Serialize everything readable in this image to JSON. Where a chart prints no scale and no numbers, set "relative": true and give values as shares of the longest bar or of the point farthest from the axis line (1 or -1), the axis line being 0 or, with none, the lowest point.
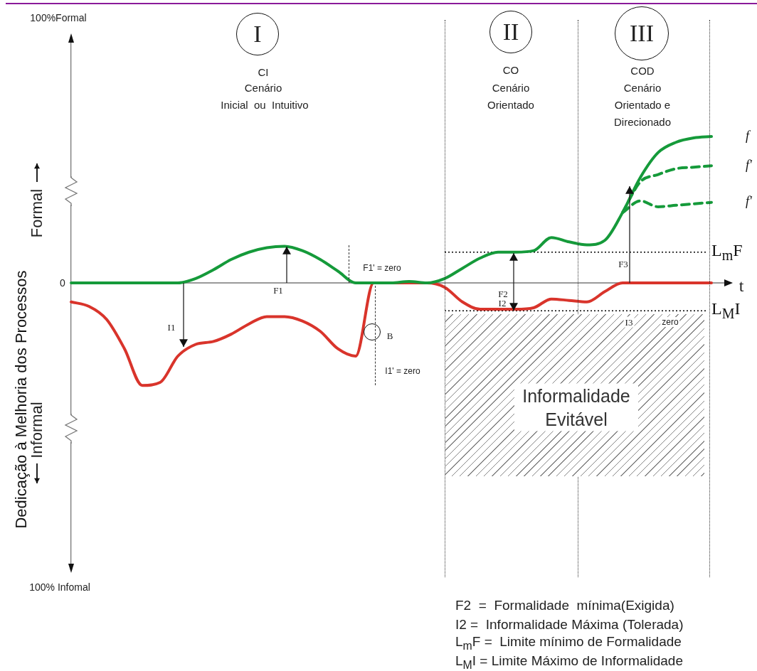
{
  "chart_data": {
    "type": "line",
    "relative": true,
    "ylabel": "Dedicação à Melhoria dos Processos",
    "categories": [
      null,
      null,
      null,
      null,
      null,
      null,
      null,
      null,
      null,
      null,
      null,
      null,
      null,
      null,
      null,
      null,
      null,
      null,
      null,
      null,
      null,
      null,
      null,
      null,
      null,
      null,
      null,
      null,
      null,
      null,
      null,
      null,
      null,
      null,
      null,
      null,
      null
    ],
    "series": [
      {
        "name": "f",
        "color": "#159a3a",
        "values": [
          0,
          0,
          0,
          0,
          0,
          0,
          0,
          0.03,
          0.09,
          0.16,
          0.21,
          0.24,
          0.25,
          0.22,
          0.16,
          0.08,
          0,
          0,
          0,
          0.01,
          0,
          0.03,
          0.1,
          0.17,
          0.21,
          0.21,
          0.22,
          0.31,
          0.28,
          0.26,
          0.29,
          0.48,
          0.72,
          0.89,
          0.96,
          0.99,
          1
        ]
      },
      {
        "name": "f'",
        "color": "#159a3a",
        "line_style": "dashed",
        "values": [
          null,
          null,
          null,
          null,
          null,
          null,
          null,
          null,
          null,
          null,
          null,
          null,
          null,
          null,
          null,
          null,
          null,
          null,
          null,
          null,
          null,
          null,
          null,
          null,
          null,
          null,
          null,
          null,
          null,
          null,
          null,
          0.48,
          0.69,
          0.74,
          0.78,
          0.79,
          0.8
        ]
      },
      {
        "name": "f'",
        "color": "#159a3a",
        "line_style": "dashed",
        "values": [
          null,
          null,
          null,
          null,
          null,
          null,
          null,
          null,
          null,
          null,
          null,
          null,
          null,
          null,
          null,
          null,
          null,
          null,
          null,
          null,
          null,
          null,
          null,
          null,
          null,
          null,
          null,
          null,
          null,
          null,
          null,
          0.48,
          0.56,
          0.52,
          0.53,
          0.54,
          0.55
        ]
      },
      {
        "color": "#d9342b",
        "values": [
          -0.13,
          -0.16,
          -0.25,
          -0.45,
          -0.7,
          -0.68,
          -0.5,
          -0.42,
          -0.4,
          -0.35,
          -0.28,
          -0.23,
          -0.23,
          -0.26,
          -0.33,
          -0.45,
          -0.5,
          0,
          0,
          0,
          0,
          -0.03,
          -0.13,
          -0.18,
          -0.18,
          -0.18,
          -0.17,
          -0.11,
          -0.12,
          -0.13,
          -0.06,
          0,
          0,
          0,
          0,
          0,
          0
        ]
      }
    ],
    "ref_lines": [
      {
        "axis": "y",
        "value": 0.21,
        "label": "L$_{m}$F",
        "line_style": "dotted",
        "color": "#000000"
      },
      {
        "axis": "y",
        "value": -0.19,
        "label": "L$_{M}$I",
        "line_style": "dotted",
        "color": "#000000"
      }
    ],
    "annotations": [
      "I",
      "CI",
      "Cenário",
      "Inicial  ou  Intuitivo",
      "II",
      "CO",
      "Cenário",
      "Orientado",
      "III",
      "COD",
      "Cenário",
      "Orientado e",
      "Direcionado",
      "100%Formal",
      "0",
      "100% Infomal",
      "Formal",
      "Informal",
      "t",
      "F1",
      "I1",
      "F1' = zero",
      "I1' = zero",
      "B",
      "F2",
      "I2",
      "F3",
      "I3",
      "zero",
      "Informalidade Evitável",
      "F2  =  Formalidade  mínima(Exigida)",
      "I2 =  Informalidade Máxima (Tolerada)",
      "L$_{m}$F =  Limite mínimo de Formalidade",
      "L$_{M}$I = Limite Máximo de Informalidade"
    ]
  }
}
